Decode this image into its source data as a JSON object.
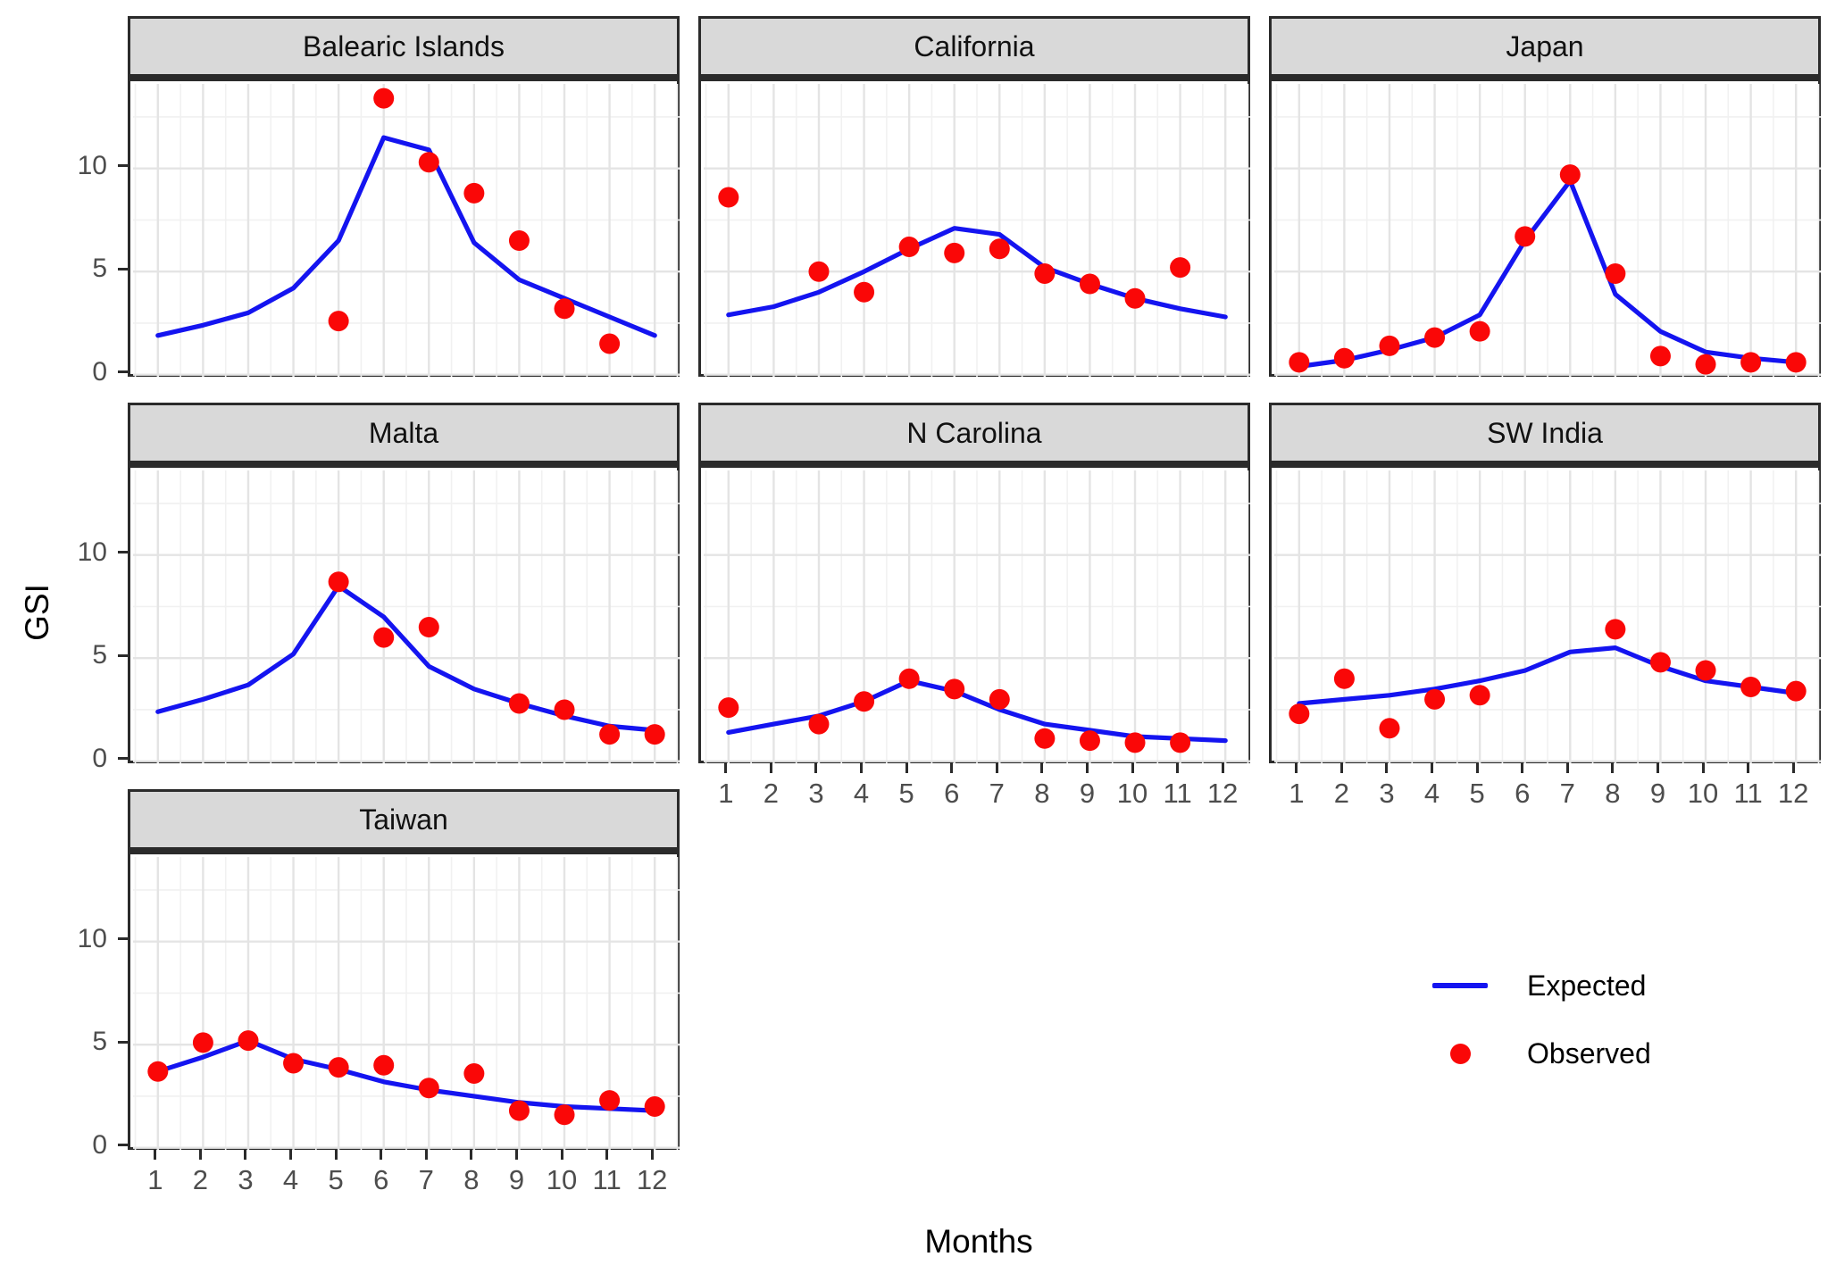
{
  "figure": {
    "y_axis_title": "GSI",
    "x_axis_title": "Months",
    "colors": {
      "expected_line": "#1414f0",
      "observed_point": "#fa0707",
      "strip_background": "#d9d9d9",
      "panel_border": "#2b2b2b",
      "grid_major": "#e4e4e4",
      "grid_minor": "#f1f1f1",
      "tick_label": "#4d4d4d",
      "tick_mark": "#2b2b2b"
    },
    "legend": {
      "items": [
        {
          "label": "Expected",
          "type": "line"
        },
        {
          "label": "Observed",
          "type": "point"
        }
      ]
    }
  },
  "chart_data": {
    "type": "line",
    "description": "Faceted monthly GSI: blue Expected line (12 monthly values) and red Observed points per location",
    "x": [
      1,
      2,
      3,
      4,
      5,
      6,
      7,
      8,
      9,
      10,
      11,
      12
    ],
    "xlabel": "Months",
    "ylabel": "GSI",
    "y_ticks": [
      0,
      5,
      10
    ],
    "y_minor_gridlines": [
      2.5,
      7.5,
      12.5
    ],
    "x_range_expanded": [
      0.45,
      12.55
    ],
    "y_range_expanded": [
      -0.1,
      14.1
    ],
    "grid": "major and minor, light gray on white, black panel border",
    "legend_position": "bottom-right empty facet area",
    "facets": [
      {
        "title": "Balearic Islands",
        "show_x_axis": false,
        "show_y_axis": true,
        "expected": [
          1.9,
          2.4,
          3.0,
          4.2,
          6.5,
          11.5,
          10.9,
          6.4,
          4.6,
          3.7,
          2.8,
          1.9
        ],
        "observed": [
          [
            5,
            2.6
          ],
          [
            6,
            13.4
          ],
          [
            7,
            10.3
          ],
          [
            8,
            8.8
          ],
          [
            9,
            6.5
          ],
          [
            10,
            3.2
          ],
          [
            11,
            1.5
          ]
        ]
      },
      {
        "title": "California",
        "show_x_axis": false,
        "show_y_axis": false,
        "expected": [
          2.9,
          3.3,
          4.0,
          5.0,
          6.1,
          7.1,
          6.8,
          5.2,
          4.4,
          3.7,
          3.2,
          2.8
        ],
        "observed": [
          [
            1,
            8.6
          ],
          [
            3,
            5.0
          ],
          [
            4,
            4.0
          ],
          [
            5,
            6.2
          ],
          [
            6,
            5.9
          ],
          [
            7,
            6.1
          ],
          [
            8,
            4.9
          ],
          [
            9,
            4.4
          ],
          [
            10,
            3.7
          ],
          [
            11,
            5.2
          ]
        ]
      },
      {
        "title": "Japan",
        "show_x_axis": false,
        "show_y_axis": false,
        "expected": [
          0.4,
          0.7,
          1.2,
          1.8,
          2.9,
          6.5,
          9.4,
          3.9,
          2.1,
          1.1,
          0.8,
          0.6
        ],
        "observed": [
          [
            1,
            0.6
          ],
          [
            2,
            0.8
          ],
          [
            3,
            1.4
          ],
          [
            4,
            1.8
          ],
          [
            5,
            2.1
          ],
          [
            6,
            6.7
          ],
          [
            7,
            9.7
          ],
          [
            8,
            4.9
          ],
          [
            9,
            0.9
          ],
          [
            10,
            0.5
          ],
          [
            11,
            0.6
          ],
          [
            12,
            0.6
          ]
        ]
      },
      {
        "title": "Malta",
        "show_x_axis": false,
        "show_y_axis": true,
        "expected": [
          2.4,
          3.0,
          3.7,
          5.2,
          8.5,
          7.0,
          4.6,
          3.5,
          2.8,
          2.2,
          1.7,
          1.5
        ],
        "observed": [
          [
            5,
            8.7
          ],
          [
            6,
            6.0
          ],
          [
            7,
            6.5
          ],
          [
            9,
            2.8
          ],
          [
            10,
            2.5
          ],
          [
            11,
            1.3
          ],
          [
            12,
            1.3
          ]
        ]
      },
      {
        "title": "N Carolina",
        "show_x_axis": true,
        "show_y_axis": false,
        "expected": [
          1.4,
          1.8,
          2.2,
          2.9,
          3.9,
          3.4,
          2.5,
          1.8,
          1.5,
          1.2,
          1.1,
          1.0
        ],
        "observed": [
          [
            1,
            2.6
          ],
          [
            3,
            1.8
          ],
          [
            4,
            2.9
          ],
          [
            5,
            4.0
          ],
          [
            6,
            3.5
          ],
          [
            7,
            3.0
          ],
          [
            8,
            1.1
          ],
          [
            9,
            1.0
          ],
          [
            10,
            0.9
          ],
          [
            11,
            0.9
          ]
        ]
      },
      {
        "title": "SW India",
        "show_x_axis": true,
        "show_y_axis": false,
        "expected": [
          2.8,
          3.0,
          3.2,
          3.5,
          3.9,
          4.4,
          5.3,
          5.5,
          4.6,
          3.9,
          3.6,
          3.3
        ],
        "observed": [
          [
            1,
            2.3
          ],
          [
            2,
            4.0
          ],
          [
            3,
            1.6
          ],
          [
            4,
            3.0
          ],
          [
            5,
            3.2
          ],
          [
            8,
            6.4
          ],
          [
            9,
            4.8
          ],
          [
            10,
            4.4
          ],
          [
            11,
            3.6
          ],
          [
            12,
            3.4
          ]
        ]
      },
      {
        "title": "Taiwan",
        "show_x_axis": true,
        "show_y_axis": true,
        "expected": [
          3.7,
          4.4,
          5.2,
          4.3,
          3.8,
          3.2,
          2.8,
          2.5,
          2.2,
          2.0,
          1.9,
          1.8
        ],
        "observed": [
          [
            1,
            3.7
          ],
          [
            2,
            5.1
          ],
          [
            3,
            5.2
          ],
          [
            4,
            4.1
          ],
          [
            5,
            3.9
          ],
          [
            6,
            4.0
          ],
          [
            7,
            2.9
          ],
          [
            8,
            3.6
          ],
          [
            9,
            1.8
          ],
          [
            10,
            1.6
          ],
          [
            11,
            2.3
          ],
          [
            12,
            2.0
          ]
        ]
      }
    ]
  }
}
